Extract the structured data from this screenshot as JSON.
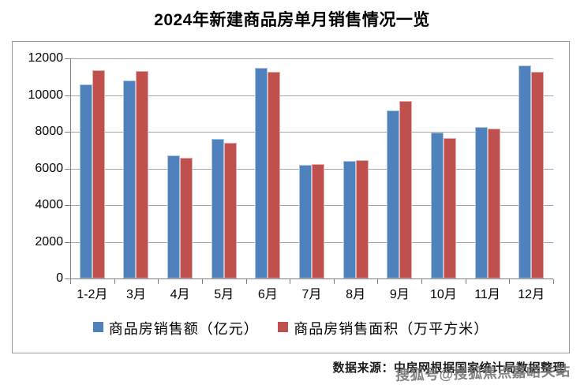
{
  "title": "2024年新建商品房单月销售情况一览",
  "source": "数据来源：中房网根据国家统计局数据整理",
  "watermark": "搜狐号@搜狐焦点嘉峪关站",
  "colors": {
    "sales": "#4F81BD",
    "area": "#C0504D",
    "gridline": "#A6A6A6",
    "axis": "#7F7F7F",
    "frame_border": "#999999",
    "watermark": "#737373",
    "text": "#000000"
  },
  "chart_data": {
    "type": "bar",
    "title": "2024年新建商品房单月销售情况一览",
    "categories": [
      "1-2月",
      "3月",
      "4月",
      "5月",
      "6月",
      "7月",
      "8月",
      "9月",
      "10月",
      "11月",
      "12月"
    ],
    "series": [
      {
        "name": "商品房销售额（亿元）",
        "color_key": "sales",
        "values": [
          10566,
          10789,
          6712,
          7598,
          11468,
          6197,
          6393,
          9157,
          7975,
          8270,
          11625
        ]
      },
      {
        "name": "商品房销售面积（万平方米）",
        "color_key": "area",
        "values": [
          11369,
          11299,
          6584,
          7390,
          11274,
          6233,
          6453,
          9682,
          7646,
          8188,
          11267
        ]
      }
    ],
    "xlabel": "",
    "ylabel": "",
    "ylim": [
      0,
      12000
    ],
    "yticks": [
      0,
      2000,
      4000,
      6000,
      8000,
      10000,
      12000
    ],
    "grid": true,
    "legend_position": "bottom"
  }
}
